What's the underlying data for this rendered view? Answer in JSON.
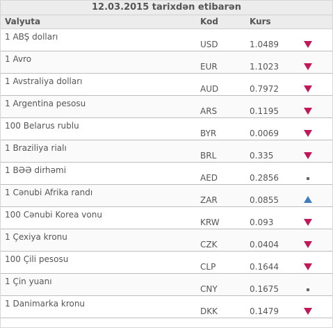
{
  "title": "12.03.2015 tarixdən etibarən",
  "headers": {
    "currency": "Valyuta",
    "code": "Kod",
    "rate": "Kurs"
  },
  "colors": {
    "down": "#c2185b",
    "up": "#3f7dc0",
    "flat": "#666666"
  },
  "rows": [
    {
      "name": "1 ABŞ dolları",
      "code": "USD",
      "rate": "1.0489",
      "trend": "down"
    },
    {
      "name": "1 Avro",
      "code": "EUR",
      "rate": "1.1023",
      "trend": "down"
    },
    {
      "name": "1 Avstraliya dolları",
      "code": "AUD",
      "rate": "0.7972",
      "trend": "down"
    },
    {
      "name": "1 Argentina pesosu",
      "code": "ARS",
      "rate": "0.1195",
      "trend": "down"
    },
    {
      "name": "100 Belarus rublu",
      "code": "BYR",
      "rate": "0.0069",
      "trend": "down"
    },
    {
      "name": "1 Braziliya rialı",
      "code": "BRL",
      "rate": "0.335",
      "trend": "down"
    },
    {
      "name": "1 BƏƏ dirhəmi",
      "code": "AED",
      "rate": "0.2856",
      "trend": "flat"
    },
    {
      "name": "1 Cənubi Afrika randı",
      "code": "ZAR",
      "rate": "0.0855",
      "trend": "up"
    },
    {
      "name": "100 Cənubi Korea vonu",
      "code": "KRW",
      "rate": "0.093",
      "trend": "down"
    },
    {
      "name": "1 Çexiya kronu",
      "code": "CZK",
      "rate": "0.0404",
      "trend": "down"
    },
    {
      "name": "100 Çili pesosu",
      "code": "CLP",
      "rate": "0.1644",
      "trend": "down"
    },
    {
      "name": "1 Çin yuanı",
      "code": "CNY",
      "rate": "0.1675",
      "trend": "flat"
    },
    {
      "name": "1 Danimarka kronu",
      "code": "DKK",
      "rate": "0.1479",
      "trend": "down"
    }
  ]
}
